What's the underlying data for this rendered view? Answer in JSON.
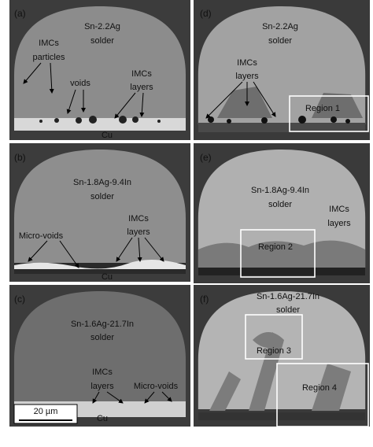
{
  "panels": [
    {
      "label": "(a)",
      "texts": [
        "Sn-2.2Ag",
        "solder",
        "IMCs",
        "particles",
        "voids",
        "IMCs",
        "layers",
        "Cu"
      ]
    },
    {
      "label": "(b)",
      "texts": [
        "Sn-1.8Ag-9.4In",
        "solder",
        "IMCs",
        "layers",
        "Micro-voids",
        "Cu"
      ]
    },
    {
      "label": "(c)",
      "texts": [
        "Sn-1.6Ag-21.7In",
        "solder",
        "IMCs",
        "layers",
        "Micro-voids",
        "Cu"
      ],
      "scale_bar": "20 µm"
    },
    {
      "label": "(d)",
      "texts": [
        "Sn-2.2Ag",
        "solder",
        "IMCs",
        "layers"
      ],
      "regions": [
        "Region 1"
      ]
    },
    {
      "label": "(e)",
      "texts": [
        "Sn-1.8Ag-9.4In",
        "solder",
        "IMCs",
        "layers"
      ],
      "regions": [
        "Region 2"
      ]
    },
    {
      "label": "(f)",
      "texts": [
        "Sn-1.6Ag-21.7In",
        "solder"
      ],
      "regions": [
        "Region 3",
        "Region 4"
      ]
    }
  ]
}
